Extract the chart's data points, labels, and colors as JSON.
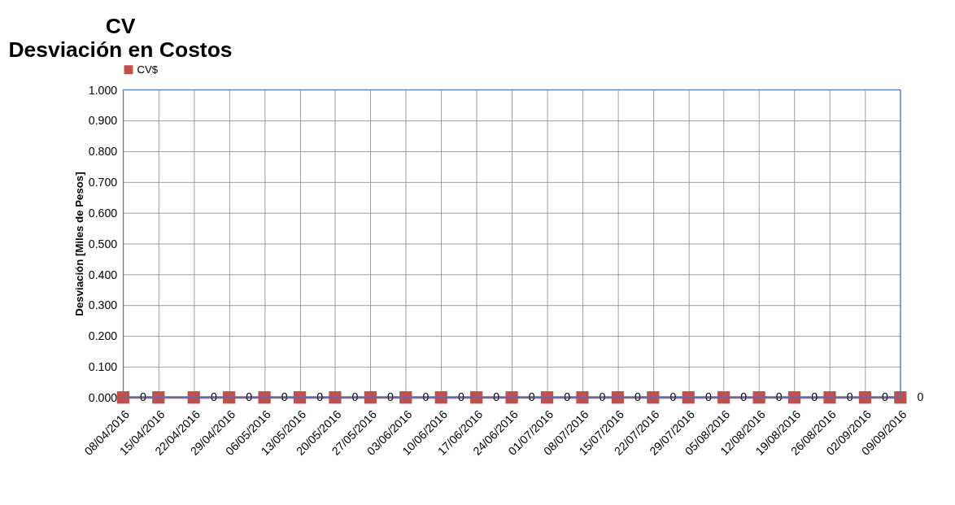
{
  "chart_data": {
    "type": "line",
    "title": [
      "CV",
      "Desviación en Costos"
    ],
    "ylabel": "Desviación [Miles de Pesos]",
    "categories": [
      "08/04/2016",
      "15/04/2016",
      "22/04/2016",
      "29/04/2016",
      "06/05/2016",
      "13/05/2016",
      "20/05/2016",
      "27/05/2016",
      "03/06/2016",
      "10/06/2016",
      "17/06/2016",
      "24/06/2016",
      "01/07/2016",
      "08/07/2016",
      "15/07/2016",
      "22/07/2016",
      "29/07/2016",
      "05/08/2016",
      "12/08/2016",
      "19/08/2016",
      "26/08/2016",
      "02/09/2016",
      "09/09/2016"
    ],
    "series": [
      {
        "name": "CV$",
        "color": "#c0504d",
        "values": [
          0,
          0,
          0,
          0,
          0,
          0,
          0,
          0,
          0,
          0,
          0,
          0,
          0,
          0,
          0,
          0,
          0,
          0,
          0,
          0,
          0,
          0,
          0
        ],
        "value_labels": [
          "0",
          null,
          "0",
          "0",
          "0",
          "0",
          "0",
          "0",
          "0",
          "0",
          "0",
          "0",
          "0",
          "0",
          "0",
          "0",
          "0",
          "0",
          "0",
          "0",
          "0",
          "0",
          "0"
        ]
      }
    ],
    "ylim": [
      0,
      1
    ],
    "yticks": [
      {
        "value": 0,
        "label": "0.000"
      },
      {
        "value": 0.1,
        "label": "0.100"
      },
      {
        "value": 0.2,
        "label": "0.200"
      },
      {
        "value": 0.3,
        "label": "0.300"
      },
      {
        "value": 0.4,
        "label": "0.400"
      },
      {
        "value": 0.5,
        "label": "0.500"
      },
      {
        "value": 0.6,
        "label": "0.600"
      },
      {
        "value": 0.7,
        "label": "0.700"
      },
      {
        "value": 0.8,
        "label": "0.800"
      },
      {
        "value": 0.9,
        "label": "0.900"
      },
      {
        "value": 1,
        "label": "1.000"
      }
    ],
    "grid": true,
    "legend": "top",
    "marker": "square",
    "line_style": "solid"
  }
}
